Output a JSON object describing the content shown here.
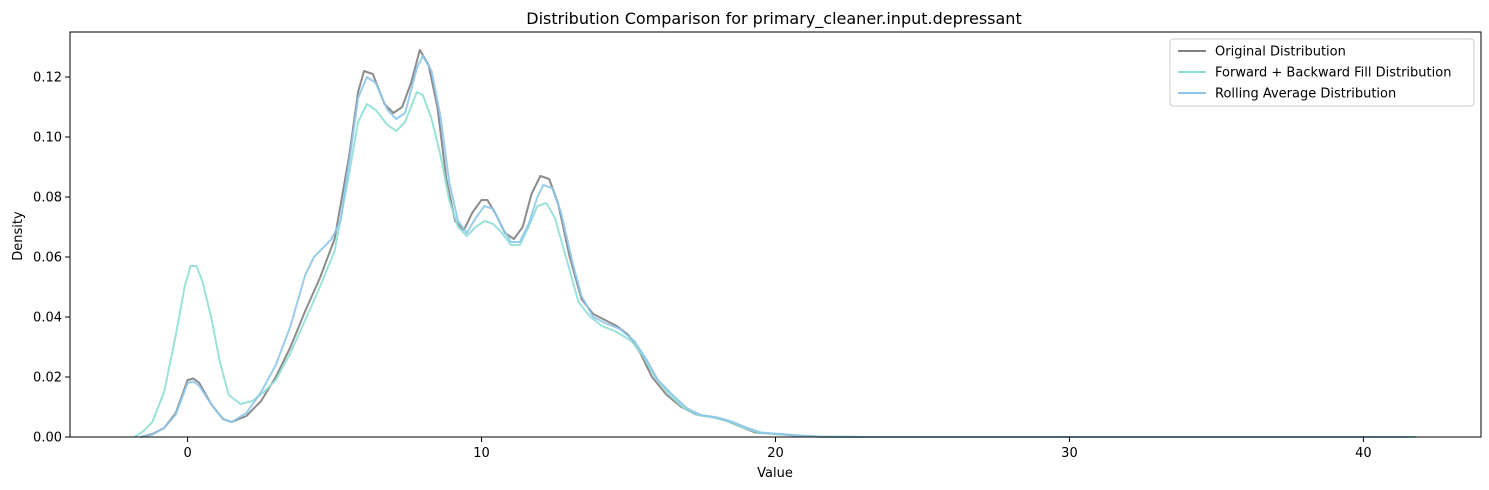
{
  "chart_data": {
    "type": "line",
    "title": "Distribution Comparison for primary_cleaner.input.depressant",
    "xlabel": "Value",
    "ylabel": "Density",
    "xlim": [
      -4,
      44
    ],
    "ylim": [
      0,
      0.135
    ],
    "xticks": [
      0,
      10,
      20,
      30,
      40
    ],
    "yticks": [
      0.0,
      0.02,
      0.04,
      0.06,
      0.08,
      0.1,
      0.12
    ],
    "ytick_labels": [
      "0.00",
      "0.02",
      "0.04",
      "0.06",
      "0.08",
      "0.10",
      "0.12"
    ],
    "grid": false,
    "legend_position": "top-right",
    "series": [
      {
        "name": "Original Distribution",
        "color": "#808080",
        "points": [
          [
            -1.6,
            0
          ],
          [
            -1.2,
            0.001
          ],
          [
            -0.8,
            0.003
          ],
          [
            -0.4,
            0.008
          ],
          [
            0,
            0.019
          ],
          [
            0.2,
            0.0195
          ],
          [
            0.4,
            0.018
          ],
          [
            0.8,
            0.011
          ],
          [
            1.2,
            0.006
          ],
          [
            1.5,
            0.005
          ],
          [
            2,
            0.007
          ],
          [
            2.5,
            0.012
          ],
          [
            3,
            0.02
          ],
          [
            3.5,
            0.03
          ],
          [
            4,
            0.042
          ],
          [
            4.5,
            0.053
          ],
          [
            5,
            0.066
          ],
          [
            5.5,
            0.094
          ],
          [
            5.8,
            0.115
          ],
          [
            6,
            0.122
          ],
          [
            6.3,
            0.121
          ],
          [
            6.7,
            0.111
          ],
          [
            7,
            0.108
          ],
          [
            7.3,
            0.11
          ],
          [
            7.6,
            0.118
          ],
          [
            7.9,
            0.129
          ],
          [
            8.2,
            0.124
          ],
          [
            8.5,
            0.11
          ],
          [
            8.8,
            0.086
          ],
          [
            9.1,
            0.072
          ],
          [
            9.4,
            0.069
          ],
          [
            9.7,
            0.075
          ],
          [
            10,
            0.079
          ],
          [
            10.2,
            0.079
          ],
          [
            10.5,
            0.074
          ],
          [
            10.8,
            0.068
          ],
          [
            11.1,
            0.066
          ],
          [
            11.4,
            0.07
          ],
          [
            11.7,
            0.081
          ],
          [
            12,
            0.087
          ],
          [
            12.3,
            0.086
          ],
          [
            12.6,
            0.078
          ],
          [
            13,
            0.06
          ],
          [
            13.4,
            0.046
          ],
          [
            13.8,
            0.041
          ],
          [
            14.2,
            0.039
          ],
          [
            14.6,
            0.037
          ],
          [
            15,
            0.034
          ],
          [
            15.4,
            0.028
          ],
          [
            15.8,
            0.02
          ],
          [
            16.3,
            0.014
          ],
          [
            16.8,
            0.01
          ],
          [
            17.3,
            0.0075
          ],
          [
            17.8,
            0.0068
          ],
          [
            18.3,
            0.0055
          ],
          [
            18.8,
            0.0035
          ],
          [
            19.3,
            0.0015
          ],
          [
            20,
            0.001
          ],
          [
            20.7,
            0.0005
          ],
          [
            21.5,
            0.0001
          ],
          [
            23,
            0
          ],
          [
            30,
            0
          ],
          [
            38,
            0
          ],
          [
            41.5,
            0
          ]
        ]
      },
      {
        "name": "Forward + Backward Fill Distribution",
        "color": "#8fdfd6",
        "points": [
          [
            -1.8,
            0
          ],
          [
            -1.5,
            0.002
          ],
          [
            -1.2,
            0.005
          ],
          [
            -0.8,
            0.015
          ],
          [
            -0.4,
            0.034
          ],
          [
            -0.1,
            0.05
          ],
          [
            0.1,
            0.057
          ],
          [
            0.3,
            0.057
          ],
          [
            0.5,
            0.052
          ],
          [
            0.8,
            0.04
          ],
          [
            1.1,
            0.025
          ],
          [
            1.4,
            0.014
          ],
          [
            1.8,
            0.011
          ],
          [
            2.2,
            0.012
          ],
          [
            2.6,
            0.015
          ],
          [
            3,
            0.019
          ],
          [
            3.5,
            0.028
          ],
          [
            4,
            0.039
          ],
          [
            4.5,
            0.05
          ],
          [
            5,
            0.062
          ],
          [
            5.5,
            0.088
          ],
          [
            5.8,
            0.105
          ],
          [
            6.1,
            0.111
          ],
          [
            6.4,
            0.109
          ],
          [
            6.8,
            0.104
          ],
          [
            7.1,
            0.102
          ],
          [
            7.4,
            0.105
          ],
          [
            7.8,
            0.115
          ],
          [
            8,
            0.114
          ],
          [
            8.3,
            0.106
          ],
          [
            8.6,
            0.094
          ],
          [
            8.9,
            0.079
          ],
          [
            9.2,
            0.07
          ],
          [
            9.5,
            0.067
          ],
          [
            9.8,
            0.07
          ],
          [
            10.1,
            0.072
          ],
          [
            10.4,
            0.071
          ],
          [
            10.7,
            0.068
          ],
          [
            11,
            0.064
          ],
          [
            11.3,
            0.064
          ],
          [
            11.6,
            0.07
          ],
          [
            11.9,
            0.077
          ],
          [
            12.2,
            0.078
          ],
          [
            12.5,
            0.073
          ],
          [
            12.9,
            0.059
          ],
          [
            13.3,
            0.045
          ],
          [
            13.7,
            0.04
          ],
          [
            14.1,
            0.037
          ],
          [
            14.6,
            0.035
          ],
          [
            15.1,
            0.032
          ],
          [
            15.5,
            0.027
          ],
          [
            15.9,
            0.02
          ],
          [
            16.4,
            0.014
          ],
          [
            16.9,
            0.0095
          ],
          [
            17.4,
            0.0072
          ],
          [
            17.9,
            0.0065
          ],
          [
            18.4,
            0.0052
          ],
          [
            18.9,
            0.0032
          ],
          [
            19.4,
            0.0015
          ],
          [
            20,
            0.001
          ],
          [
            20.8,
            0.0005
          ],
          [
            21.6,
            0.0001
          ],
          [
            23,
            0
          ],
          [
            30,
            0
          ],
          [
            38,
            0
          ],
          [
            41.8,
            0
          ]
        ]
      },
      {
        "name": "Rolling Average Distribution",
        "color": "#8fc6ea",
        "points": [
          [
            -1.6,
            0
          ],
          [
            -1.2,
            0.0008
          ],
          [
            -0.8,
            0.003
          ],
          [
            -0.4,
            0.0075
          ],
          [
            0,
            0.018
          ],
          [
            0.2,
            0.0185
          ],
          [
            0.4,
            0.017
          ],
          [
            0.8,
            0.011
          ],
          [
            1.2,
            0.006
          ],
          [
            1.5,
            0.005
          ],
          [
            2,
            0.008
          ],
          [
            2.5,
            0.015
          ],
          [
            3,
            0.024
          ],
          [
            3.5,
            0.037
          ],
          [
            4,
            0.054
          ],
          [
            4.3,
            0.06
          ],
          [
            4.6,
            0.063
          ],
          [
            4.9,
            0.066
          ],
          [
            5.2,
            0.072
          ],
          [
            5.5,
            0.092
          ],
          [
            5.8,
            0.113
          ],
          [
            6.1,
            0.12
          ],
          [
            6.4,
            0.118
          ],
          [
            6.8,
            0.109
          ],
          [
            7.1,
            0.106
          ],
          [
            7.4,
            0.108
          ],
          [
            7.8,
            0.123
          ],
          [
            8,
            0.127
          ],
          [
            8.3,
            0.122
          ],
          [
            8.6,
            0.107
          ],
          [
            8.9,
            0.085
          ],
          [
            9.2,
            0.072
          ],
          [
            9.5,
            0.068
          ],
          [
            9.8,
            0.073
          ],
          [
            10.1,
            0.077
          ],
          [
            10.4,
            0.076
          ],
          [
            10.7,
            0.07
          ],
          [
            11,
            0.065
          ],
          [
            11.3,
            0.065
          ],
          [
            11.6,
            0.071
          ],
          [
            11.9,
            0.08
          ],
          [
            12.1,
            0.084
          ],
          [
            12.4,
            0.083
          ],
          [
            12.7,
            0.075
          ],
          [
            13.1,
            0.058
          ],
          [
            13.4,
            0.047
          ],
          [
            13.8,
            0.04
          ],
          [
            14.2,
            0.038
          ],
          [
            14.7,
            0.036
          ],
          [
            15.2,
            0.032
          ],
          [
            15.6,
            0.026
          ],
          [
            16,
            0.019
          ],
          [
            16.5,
            0.014
          ],
          [
            17,
            0.0095
          ],
          [
            17.5,
            0.0072
          ],
          [
            18,
            0.0066
          ],
          [
            18.5,
            0.0052
          ],
          [
            19,
            0.0032
          ],
          [
            19.5,
            0.0015
          ],
          [
            20.2,
            0.001
          ],
          [
            20.9,
            0.0004
          ],
          [
            21.6,
            0.0001
          ],
          [
            23,
            0
          ],
          [
            30,
            0
          ],
          [
            38,
            0
          ],
          [
            41.5,
            0
          ]
        ]
      }
    ]
  }
}
